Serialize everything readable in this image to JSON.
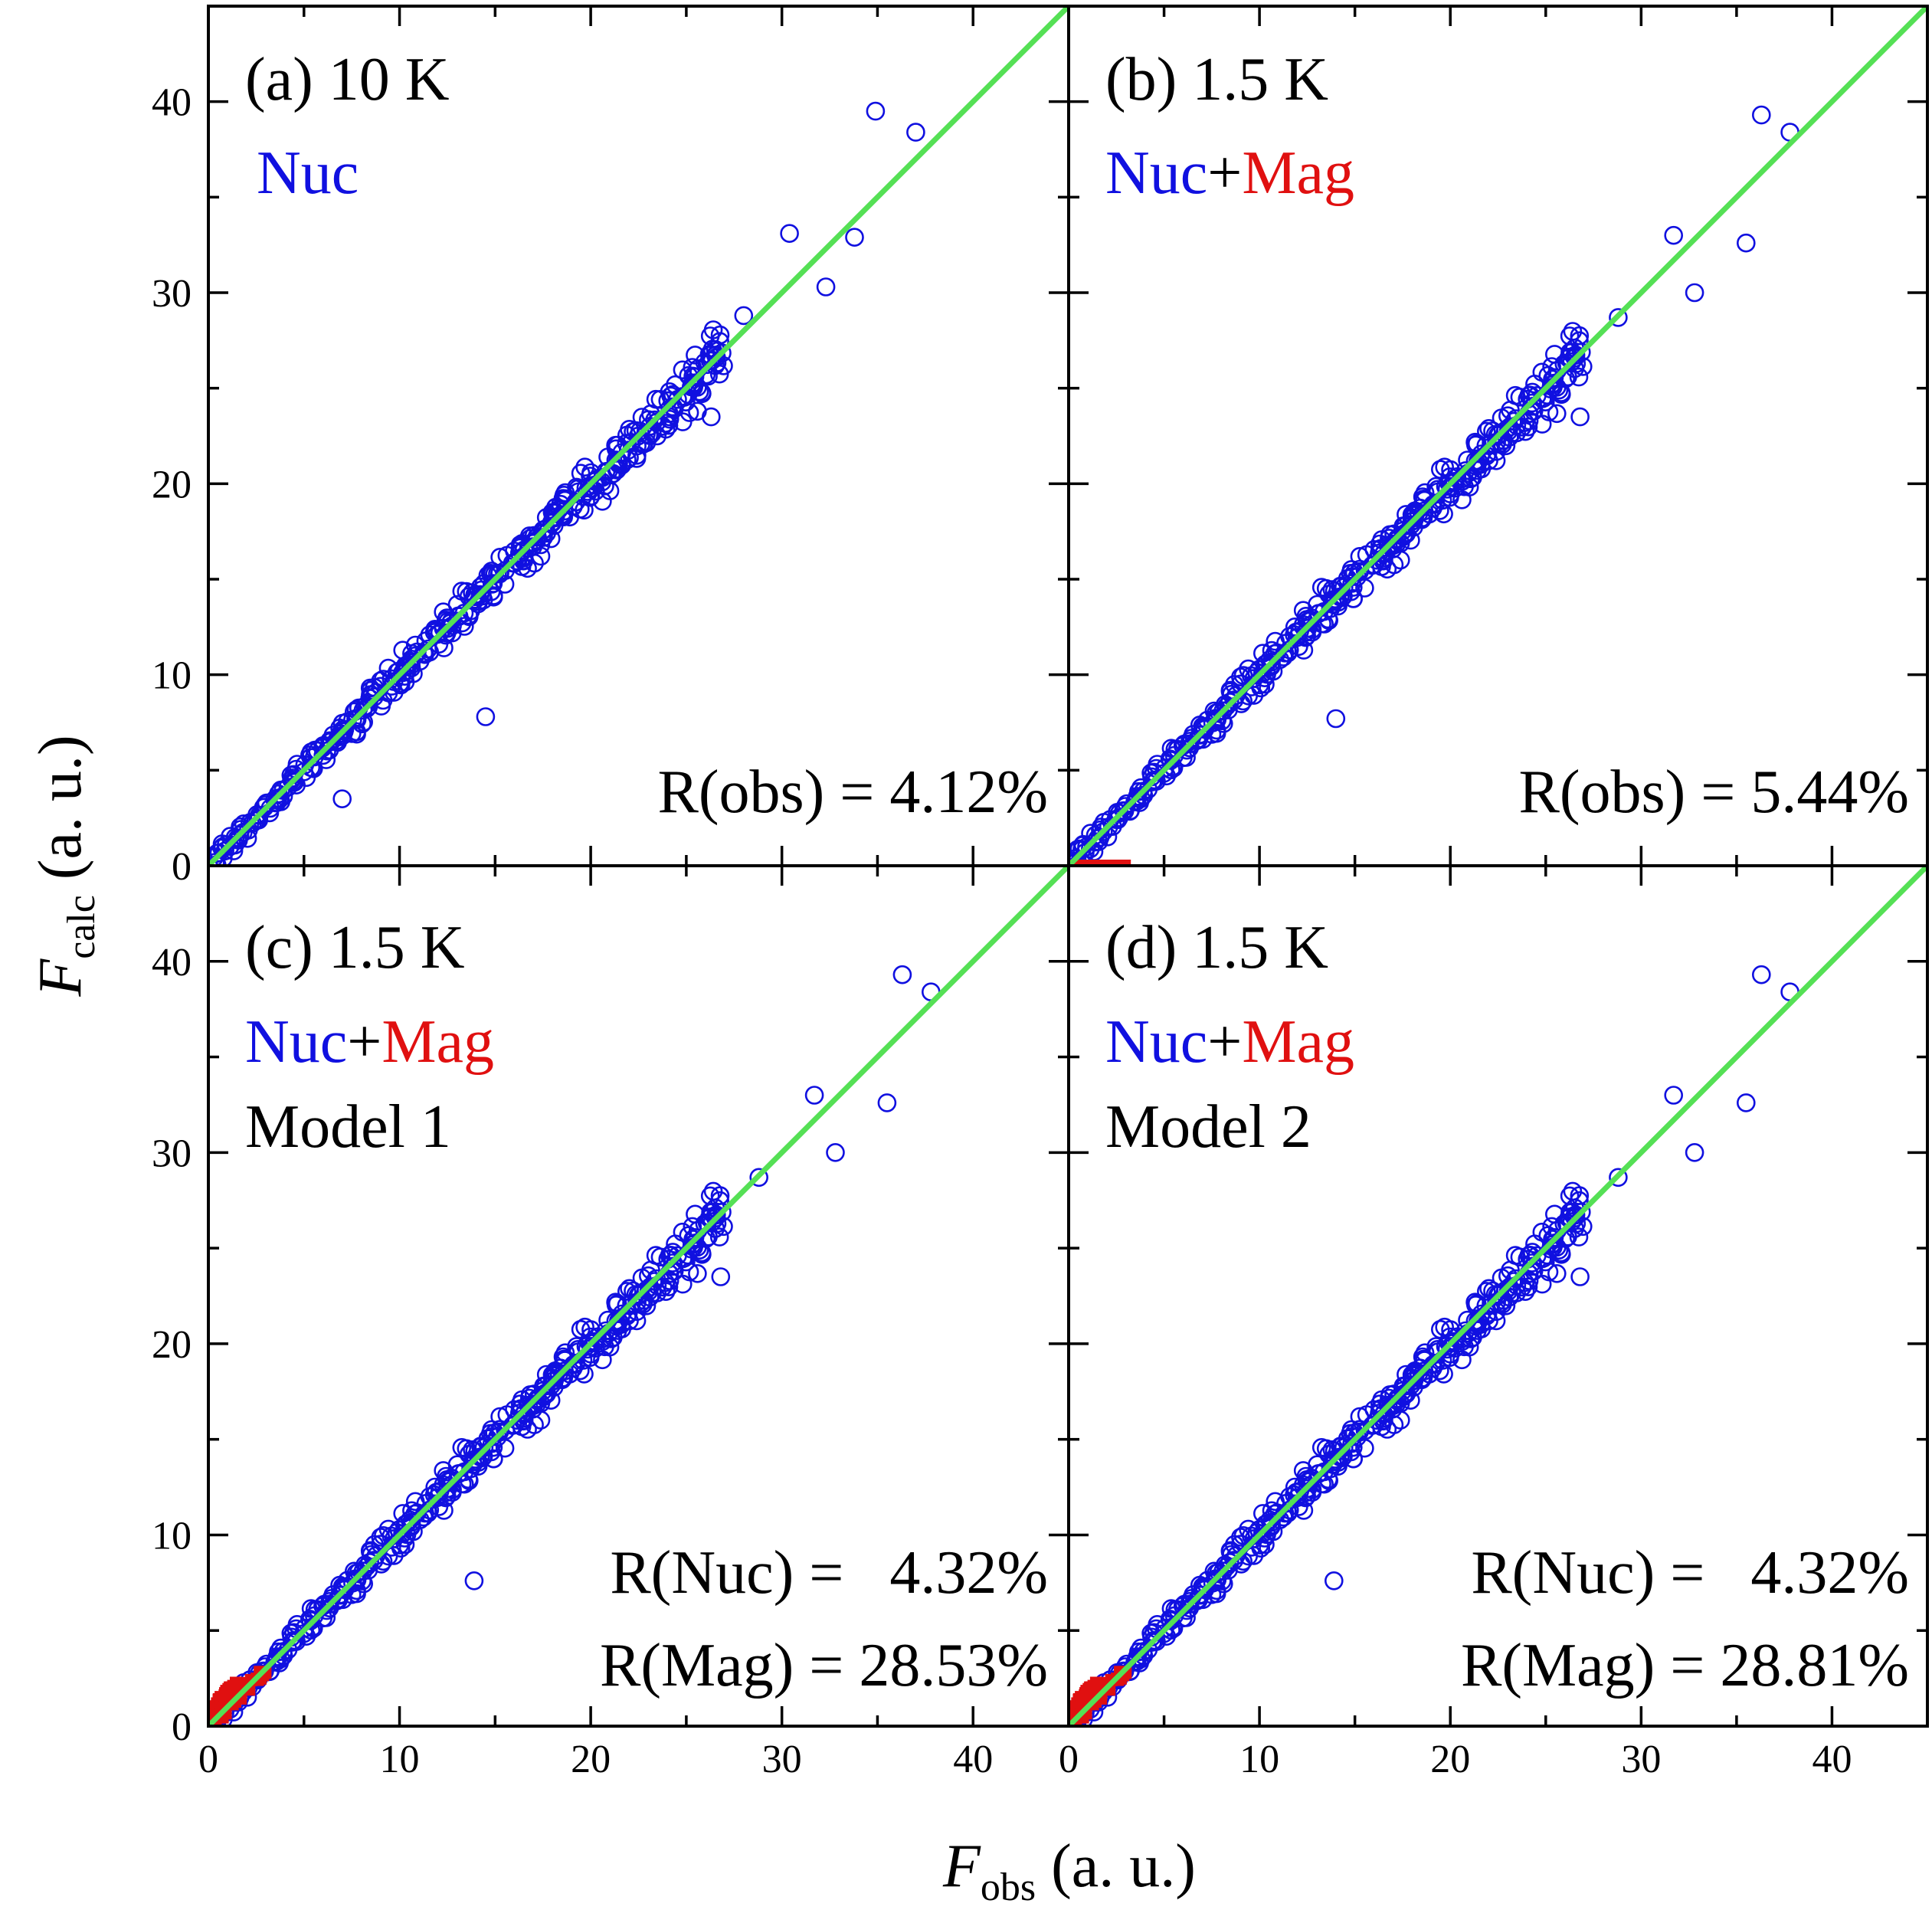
{
  "figure": {
    "x_axis_label": {
      "symbol": "F",
      "subscript": "obs",
      "unit": " (a. u.)"
    },
    "y_axis_label": {
      "symbol": "F",
      "subscript": "calc",
      "unit": " (a. u.)"
    },
    "tick_labels": [
      "0",
      "10",
      "20",
      "30",
      "40"
    ]
  },
  "colors": {
    "nuc": "#1010e0",
    "mag": "#e01010",
    "fit_line": "#55e055",
    "axis": "#000000"
  },
  "panels": [
    {
      "id": "a",
      "title": "(a) 10 K",
      "legend": {
        "nuc": "Nuc"
      },
      "r_lines": [
        "R(obs) = 4.12%"
      ]
    },
    {
      "id": "b",
      "title": "(b) 1.5 K",
      "legend": {
        "nuc": "Nuc",
        "plus": "+",
        "mag": "Mag"
      },
      "r_lines": [
        "R(obs) = 5.44%"
      ]
    },
    {
      "id": "c",
      "title": "(c) 1.5 K",
      "legend": {
        "nuc": "Nuc",
        "plus": "+",
        "mag": "Mag"
      },
      "model": "Model 1",
      "r_lines": [
        "R(Nuc) =   4.32%",
        "R(Mag) = 28.53%"
      ]
    },
    {
      "id": "d",
      "title": "(d) 1.5 K",
      "legend": {
        "nuc": "Nuc",
        "plus": "+",
        "mag": "Mag"
      },
      "model": "Model 2",
      "r_lines": [
        "R(Nuc) =   4.32%",
        "R(Mag) = 28.81%"
      ]
    }
  ],
  "chart_data": {
    "type": "scatter",
    "layout": "2x2 panels, shared axes",
    "xlabel": "F_obs (a. u.)",
    "ylabel": "F_calc (a. u.)",
    "xlim": [
      0,
      45
    ],
    "ylim": [
      0,
      45
    ],
    "xticks": [
      0,
      10,
      20,
      30,
      40
    ],
    "yticks": [
      0,
      10,
      20,
      30,
      40
    ],
    "reference_line": {
      "name": "F_calc = F_obs",
      "slope": 1,
      "intercept": 0
    },
    "nuclear_outliers": {
      "a": [
        [
          34.9,
          39.5
        ],
        [
          37.0,
          38.4
        ],
        [
          30.4,
          33.1
        ],
        [
          33.8,
          32.9
        ],
        [
          32.3,
          30.3
        ],
        [
          28.0,
          28.8
        ],
        [
          26.3,
          23.5
        ],
        [
          14.5,
          7.8
        ],
        [
          7.0,
          3.5
        ]
      ],
      "b": [
        [
          36.3,
          39.3
        ],
        [
          37.8,
          38.4
        ],
        [
          31.7,
          33.0
        ],
        [
          35.5,
          32.6
        ],
        [
          32.8,
          30.0
        ],
        [
          28.8,
          28.7
        ],
        [
          26.8,
          23.5
        ],
        [
          14.0,
          7.7
        ]
      ],
      "c": [
        [
          36.3,
          39.3
        ],
        [
          37.8,
          38.4
        ],
        [
          31.7,
          33.0
        ],
        [
          35.5,
          32.6
        ],
        [
          32.8,
          30.0
        ],
        [
          28.8,
          28.7
        ],
        [
          26.8,
          23.5
        ],
        [
          13.9,
          7.6
        ]
      ],
      "d": [
        [
          36.3,
          39.3
        ],
        [
          37.8,
          38.4
        ],
        [
          31.7,
          33.0
        ],
        [
          35.5,
          32.6
        ],
        [
          32.8,
          30.0
        ],
        [
          28.8,
          28.7
        ],
        [
          26.8,
          23.5
        ],
        [
          13.9,
          7.6
        ]
      ]
    },
    "series": [
      {
        "name": "Nuc",
        "panels": [
          "a",
          "b",
          "c",
          "d"
        ],
        "marker": "open circle",
        "x_range": [
          0.3,
          27.0
        ],
        "note": "hundreds of reflections scattered within about ±1.2 of the y = x line"
      },
      {
        "name": "Mag",
        "panels": [
          "b",
          "c",
          "d"
        ],
        "marker": "filled square",
        "x_range": [
          0,
          3.0
        ],
        "y_range": [
          0,
          3.0
        ],
        "note": "cluster of small magnetic reflections near the origin"
      }
    ]
  }
}
